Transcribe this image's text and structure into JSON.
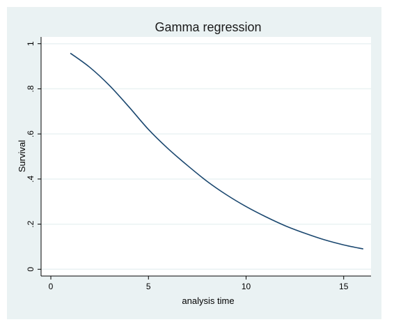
{
  "colors": {
    "page_background": "#ffffff",
    "outer_background": "#eaf2f3",
    "plot_background": "#ffffff",
    "gridline": "#eaf2f3",
    "series_line": "#1a476f",
    "axis": "#000000"
  },
  "chart_data": {
    "type": "line",
    "title": "Gamma regression",
    "xlabel": "analysis time",
    "ylabel": "Survival",
    "xlim": [
      -0.5,
      16.4
    ],
    "ylim": [
      -0.03,
      1.03
    ],
    "x_ticks": [
      0,
      5,
      10,
      15
    ],
    "x_tick_labels": [
      "0",
      "5",
      "10",
      "15"
    ],
    "y_ticks": [
      0,
      0.2,
      0.4,
      0.6,
      0.8,
      1
    ],
    "y_tick_labels": [
      "0",
      ".2",
      ".4",
      ".6",
      ".8",
      "1"
    ],
    "grid": true,
    "legend": "none",
    "series": [
      {
        "x": [
          1,
          2,
          3,
          4,
          5,
          6,
          7,
          8,
          9,
          10,
          11,
          12,
          13,
          14,
          15,
          16
        ],
        "y": [
          0.958,
          0.895,
          0.815,
          0.72,
          0.62,
          0.535,
          0.46,
          0.39,
          0.33,
          0.278,
          0.233,
          0.193,
          0.16,
          0.131,
          0.108,
          0.09
        ]
      }
    ]
  }
}
